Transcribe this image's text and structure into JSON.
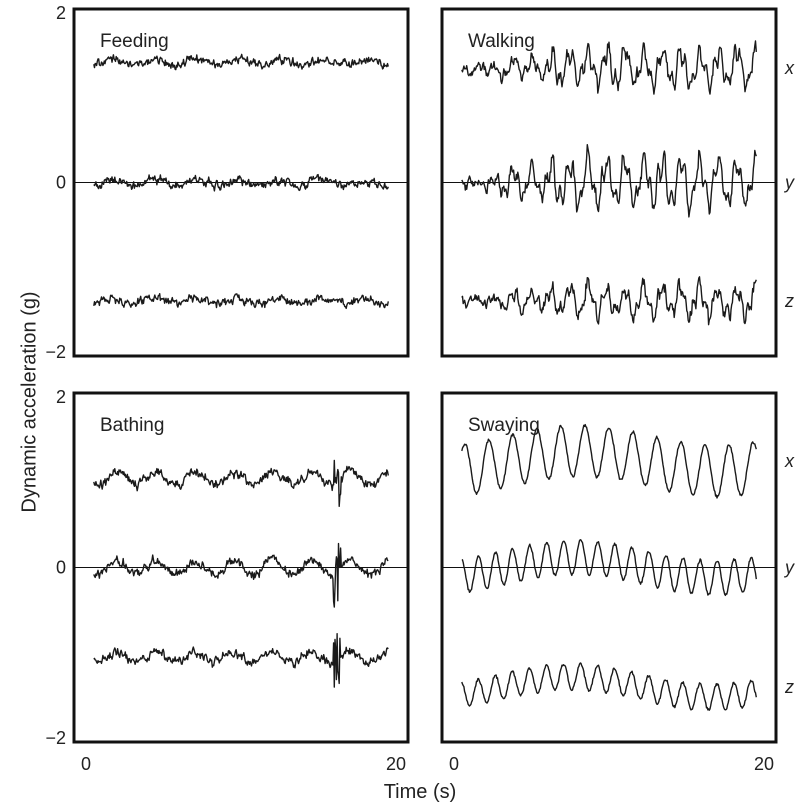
{
  "figure": {
    "y_axis_label": "Dynamic acceleration (g)",
    "x_axis_label": "Time (s)"
  },
  "chart_data": [
    {
      "type": "line",
      "title": "Feeding",
      "xlim": [
        0,
        20
      ],
      "ylim": [
        -2,
        2
      ],
      "y_ticks": [
        "2",
        "0",
        "−2"
      ],
      "x_ticks": [],
      "channel_labels": [],
      "series": [
        {
          "name": "x",
          "offset": 1.42,
          "pattern": "noise",
          "amplitude": 0.05
        },
        {
          "name": "y",
          "offset": 0.0,
          "pattern": "noise",
          "amplitude": 0.05
        },
        {
          "name": "z",
          "offset": -1.4,
          "pattern": "noise",
          "amplitude": 0.05
        }
      ]
    },
    {
      "type": "line",
      "title": "Walking",
      "xlim": [
        0,
        20
      ],
      "ylim": [
        -2,
        2
      ],
      "y_ticks": [],
      "x_ticks": [],
      "channel_labels": [
        "x",
        "y",
        "z"
      ],
      "series": [
        {
          "name": "x",
          "offset": 1.35,
          "pattern": "walking",
          "amplitude": 0.3
        },
        {
          "name": "y",
          "offset": 0.0,
          "pattern": "walking",
          "amplitude": 0.4
        },
        {
          "name": "z",
          "offset": -1.4,
          "pattern": "walking",
          "amplitude": 0.25
        }
      ]
    },
    {
      "type": "line",
      "title": "Bathing",
      "xlim": [
        0,
        20
      ],
      "ylim": [
        -2,
        2
      ],
      "y_ticks": [
        "2",
        "0",
        "−2"
      ],
      "x_ticks": [
        "0",
        "20"
      ],
      "channel_labels": [],
      "series": [
        {
          "name": "x",
          "offset": 1.05,
          "pattern": "bathing",
          "amplitude": 0.08
        },
        {
          "name": "y",
          "offset": 0.0,
          "pattern": "bathing",
          "amplitude": 0.08
        },
        {
          "name": "z",
          "offset": -1.05,
          "pattern": "bathing",
          "amplitude": 0.06
        }
      ]
    },
    {
      "type": "line",
      "title": "Swaying",
      "xlim": [
        0,
        20
      ],
      "ylim": [
        -2,
        2
      ],
      "y_ticks": [],
      "x_ticks": [
        "0",
        "20"
      ],
      "channel_labels": [
        "x",
        "y",
        "z"
      ],
      "series": [
        {
          "name": "x",
          "offset": 1.25,
          "pattern": "sway",
          "amplitude": 0.3,
          "period": 1.55
        },
        {
          "name": "y",
          "offset": 0.0,
          "pattern": "sway",
          "amplitude": 0.2,
          "period": 1.1
        },
        {
          "name": "z",
          "offset": -1.4,
          "pattern": "sway",
          "amplitude": 0.15,
          "period": 1.1
        }
      ]
    }
  ]
}
